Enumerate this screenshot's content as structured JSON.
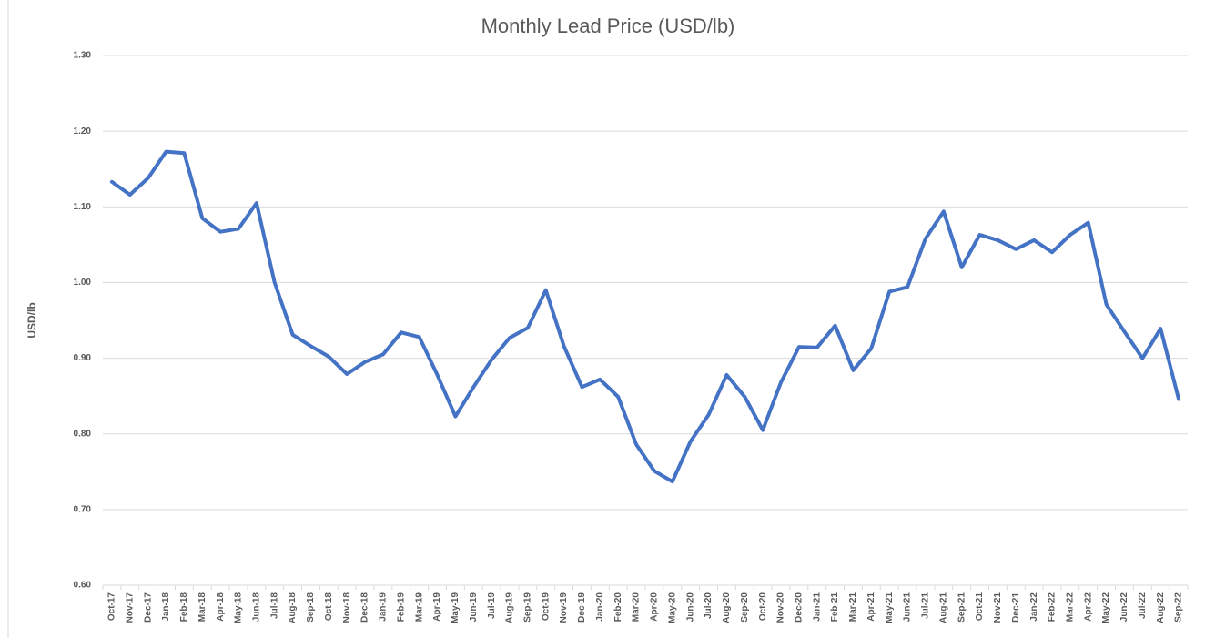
{
  "chart_data": {
    "type": "line",
    "title": "Monthly Lead Price (USD/lb)",
    "y_label": "USD/lb",
    "categories": [
      "Oct-17",
      "Nov-17",
      "Dec-17",
      "Jan-18",
      "Feb-18",
      "Mar-18",
      "Apr-18",
      "May-18",
      "Jun-18",
      "Jul-18",
      "Aug-18",
      "Sep-18",
      "Oct-18",
      "Nov-18",
      "Dec-18",
      "Jan-19",
      "Feb-19",
      "Mar-19",
      "Apr-19",
      "May-19",
      "Jun-19",
      "Jul-19",
      "Aug-19",
      "Sep-19",
      "Oct-19",
      "Nov-19",
      "Dec-19",
      "Jan-20",
      "Feb-20",
      "Mar-20",
      "Apr-20",
      "May-20",
      "Jun-20",
      "Jul-20",
      "Aug-20",
      "Sep-20",
      "Oct-20",
      "Nov-20",
      "Dec-20",
      "Jan-21",
      "Feb-21",
      "Mar-21",
      "Apr-21",
      "May-21",
      "Jun-21",
      "Jul-21",
      "Aug-21",
      "Sep-21",
      "Oct-21",
      "Nov-21",
      "Dec-21",
      "Jan-22",
      "Feb-22",
      "Mar-22",
      "Apr-22",
      "May-22",
      "Jun-22",
      "Jul-22",
      "Aug-22",
      "Sep-22"
    ],
    "values": [
      1.133,
      1.116,
      1.138,
      1.173,
      1.171,
      1.085,
      1.067,
      1.071,
      1.105,
      1.0,
      0.931,
      0.916,
      0.902,
      0.879,
      0.895,
      0.905,
      0.934,
      0.928,
      0.878,
      0.823,
      0.862,
      0.898,
      0.927,
      0.94,
      0.99,
      0.916,
      0.862,
      0.872,
      0.849,
      0.786,
      0.751,
      0.737,
      0.79,
      0.825,
      0.878,
      0.849,
      0.805,
      0.868,
      0.915,
      0.914,
      0.943,
      0.884,
      0.913,
      0.988,
      0.994,
      1.058,
      1.094,
      1.02,
      1.063,
      1.056,
      1.044,
      1.056,
      1.04,
      1.063,
      1.079,
      0.971,
      0.935,
      0.9,
      0.939,
      0.846
    ],
    "color": "#4472c4",
    "ylim": [
      0.6,
      1.3
    ],
    "yticks": [
      {
        "value": 0.6,
        "label": "0.60"
      },
      {
        "value": 0.7,
        "label": "0.70"
      },
      {
        "value": 0.8,
        "label": "0.80"
      },
      {
        "value": 0.9,
        "label": "0.90"
      },
      {
        "value": 1.0,
        "label": "1.00"
      },
      {
        "value": 1.1,
        "label": "1.10"
      },
      {
        "value": 1.2,
        "label": "1.20"
      },
      {
        "value": 1.3,
        "label": "1.30"
      }
    ],
    "grid": true
  }
}
